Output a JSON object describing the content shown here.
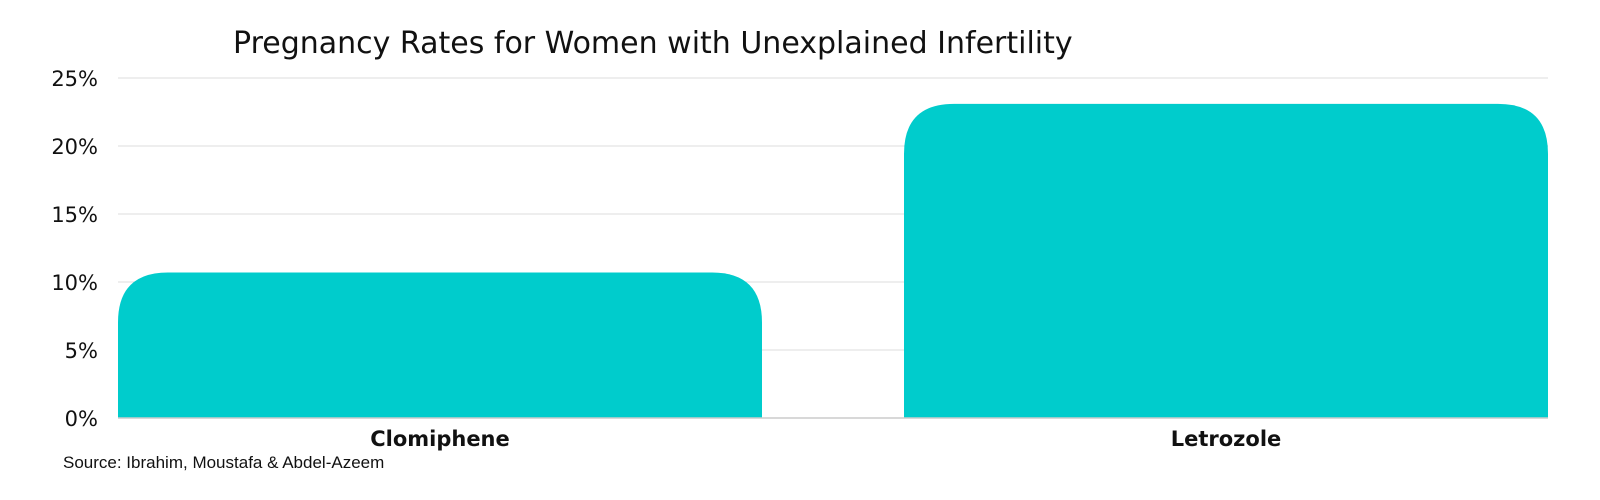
{
  "chart_data": {
    "type": "bar",
    "title": "Pregnancy Rates for Women with Unexplained Infertility",
    "categories": [
      "Clomiphene",
      "Letrozole"
    ],
    "values": [
      10.7,
      23.1
    ],
    "unit": "%",
    "ylim": [
      0,
      25
    ],
    "yticks": [
      0,
      5,
      10,
      15,
      20,
      25
    ],
    "ytick_labels": [
      "0%",
      "5%",
      "10%",
      "15%",
      "20%",
      "25%"
    ],
    "grid": true,
    "legend": false,
    "bar_color": "#00CCCC",
    "grid_color": "#DDDDDD"
  },
  "source": "Source: Ibrahim, Moustafa & Abdel-Azeem"
}
